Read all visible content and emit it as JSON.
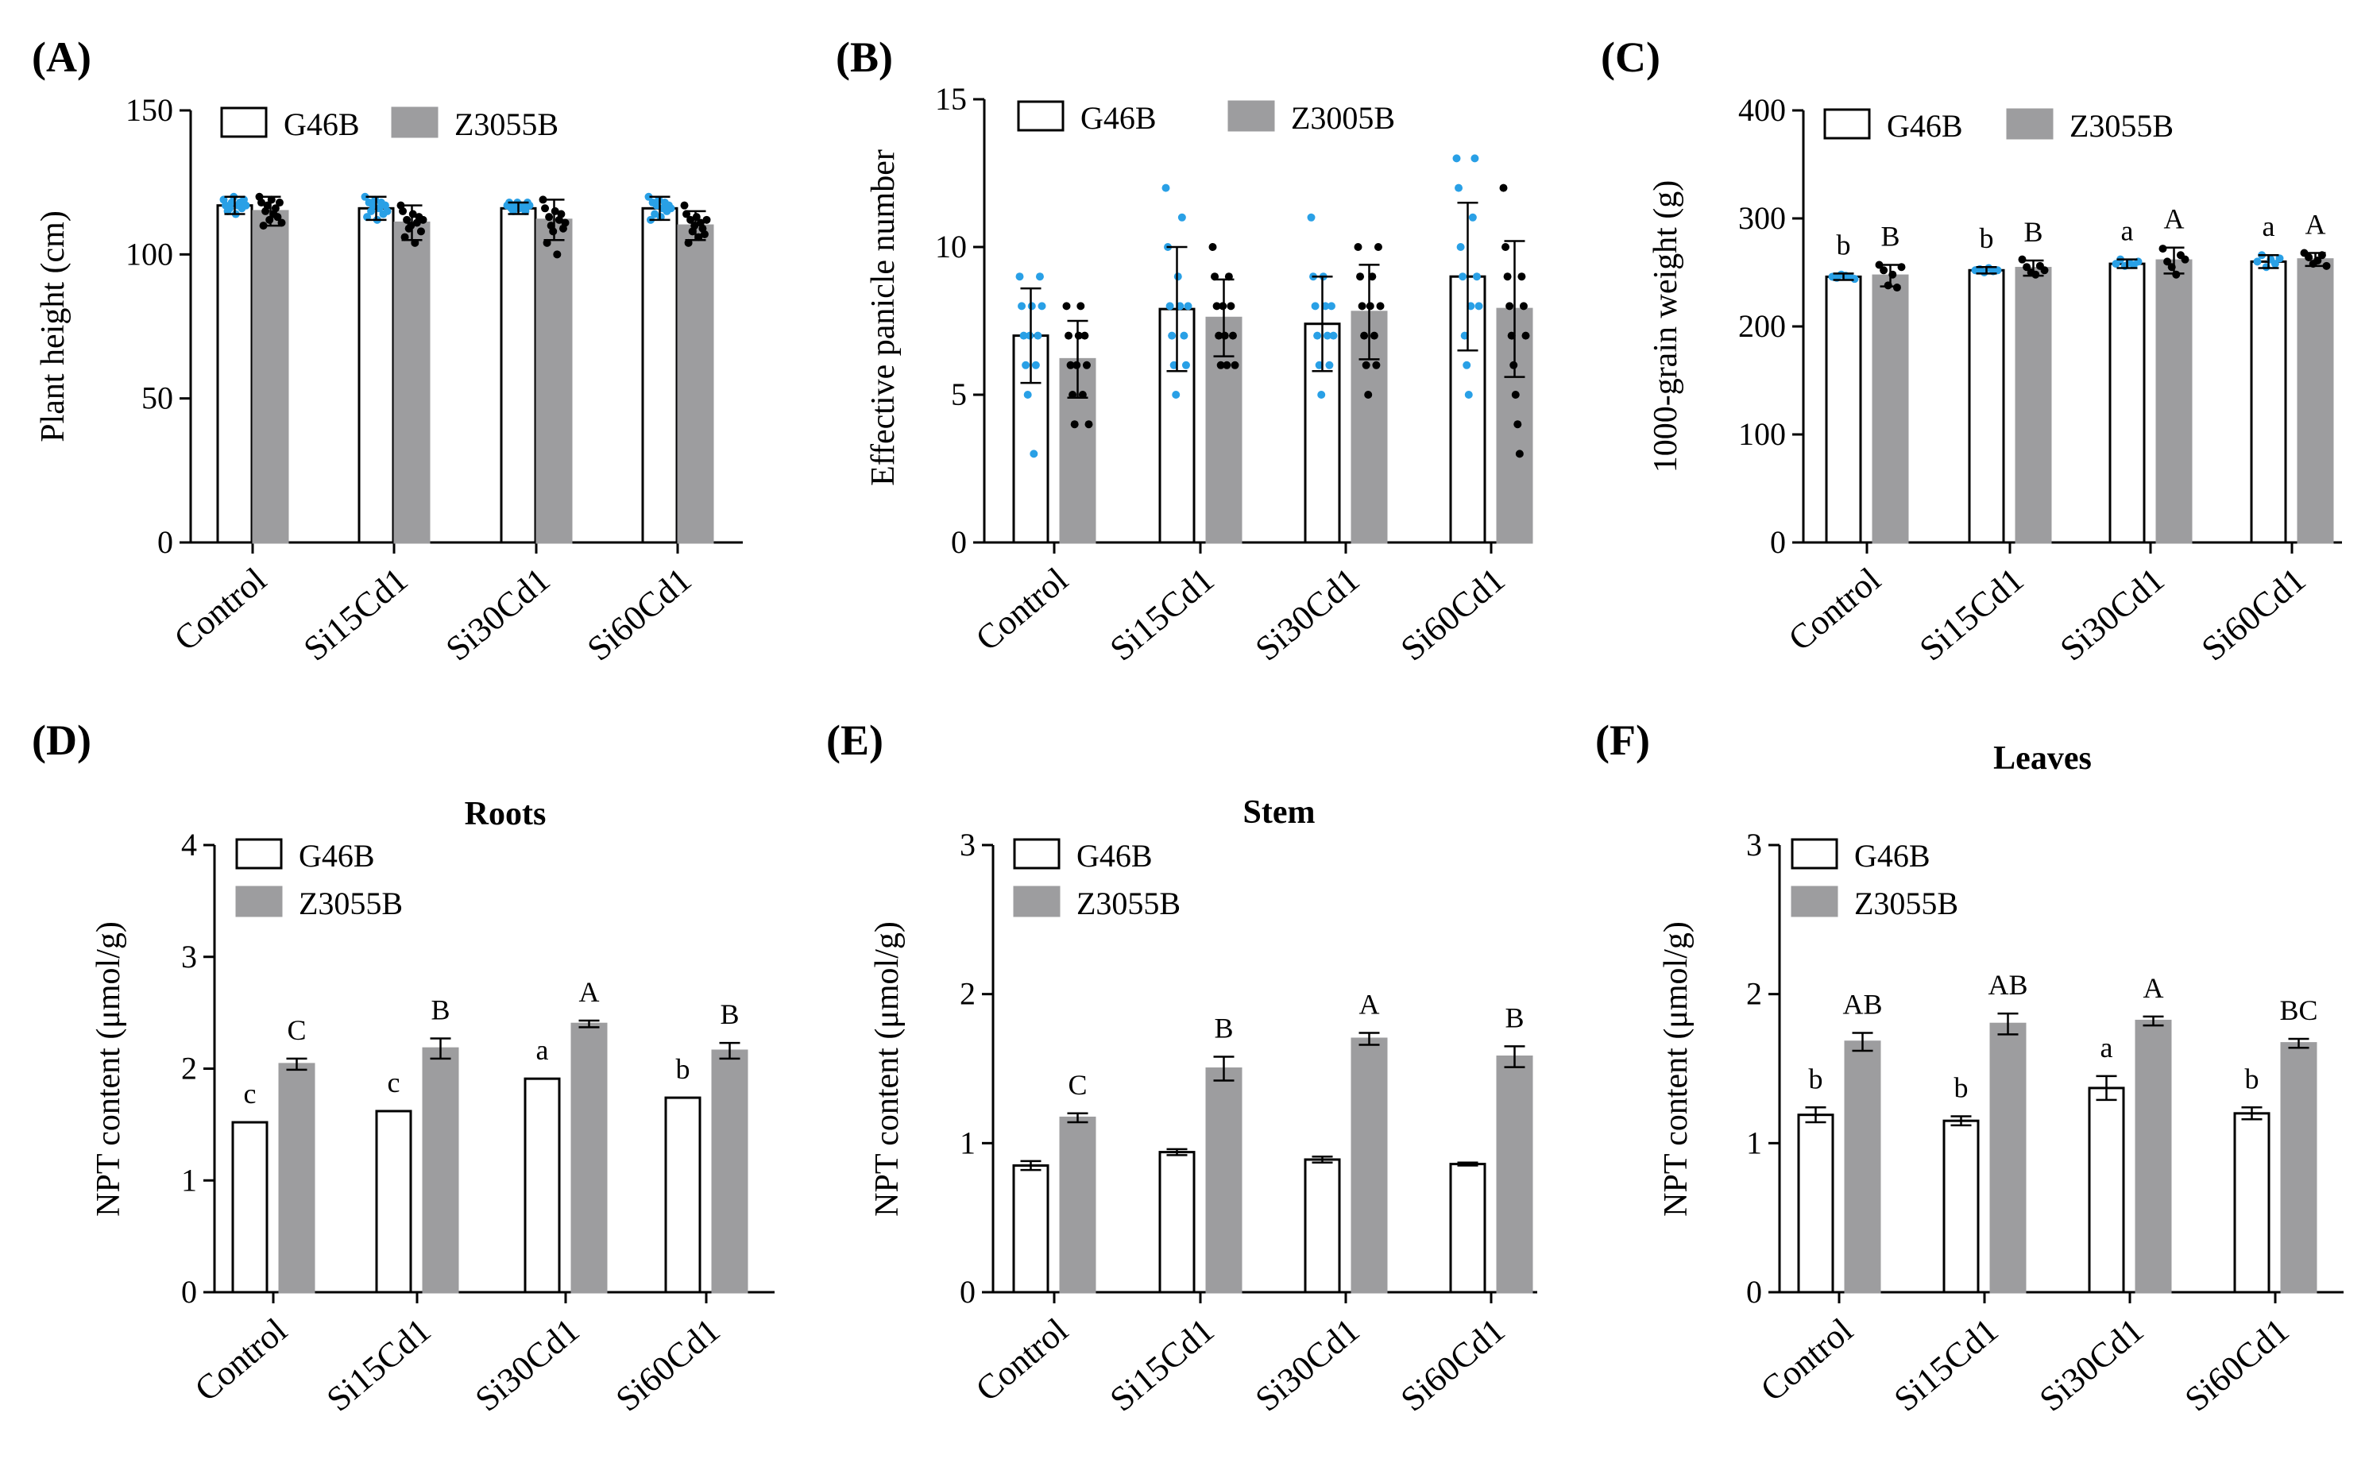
{
  "colors": {
    "open_bar": "#ffffff",
    "filled_bar": "#9d9d9f",
    "axis": "#000000",
    "dot_g46b": "#29a0e6",
    "dot_z3055b": "#000000"
  },
  "chart_data": [
    {
      "id": "A",
      "panel_label": "(A)",
      "title": "",
      "type": "bar",
      "ylabel": "Plant height (cm)",
      "ylim": [
        0,
        150
      ],
      "yticks": [
        0,
        50,
        100,
        150
      ],
      "categories": [
        "Control",
        "Si15Cd1",
        "Si30Cd1",
        "Si60Cd1"
      ],
      "legend": [
        "G46B",
        "Z3055B"
      ],
      "legend_layout": "row",
      "series": [
        {
          "name": "G46B",
          "values": [
            117,
            116,
            116,
            116
          ],
          "err": [
            3,
            4,
            2,
            4
          ],
          "sig": [],
          "points": [
            [
              119,
              117,
              115,
              116,
              118,
              120,
              114,
              117,
              118,
              116,
              119,
              117
            ],
            [
              120,
              113,
              118,
              115,
              117,
              119,
              112,
              116,
              118,
              114,
              117,
              115
            ],
            [
              117,
              118,
              116,
              115,
              117,
              118,
              116,
              117,
              116,
              115,
              118,
              117
            ],
            [
              120,
              112,
              118,
              114,
              117,
              119,
              113,
              116,
              118,
              115,
              117,
              116
            ]
          ]
        },
        {
          "name": "Z3055B",
          "values": [
            115,
            111,
            112,
            110
          ],
          "err": [
            5,
            6,
            7,
            5
          ],
          "sig": [],
          "points": [
            [
              120,
              118,
              110,
              115,
              117,
              112,
              119,
              114,
              116,
              113,
              118,
              111
            ],
            [
              117,
              115,
              106,
              112,
              109,
              110,
              114,
              104,
              111,
              113,
              108,
              112
            ],
            [
              119,
              116,
              104,
              113,
              110,
              108,
              115,
              100,
              112,
              114,
              109,
              111
            ],
            [
              117,
              114,
              104,
              112,
              108,
              110,
              113,
              106,
              111,
              109,
              107,
              112
            ]
          ]
        }
      ]
    },
    {
      "id": "B",
      "panel_label": "(B)",
      "title": "",
      "type": "bar",
      "ylabel": "Effective panicle number",
      "ylim": [
        0,
        15
      ],
      "yticks": [
        0,
        5,
        10,
        15
      ],
      "categories": [
        "Control",
        "Si15Cd1",
        "Si30Cd1",
        "Si60Cd1"
      ],
      "legend": [
        "G46B",
        "Z3005B"
      ],
      "legend_layout": "row",
      "series": [
        {
          "name": "G46B",
          "values": [
            7.0,
            7.9,
            7.4,
            9.0
          ],
          "err": [
            1.6,
            2.1,
            1.6,
            2.5
          ],
          "sig": [],
          "points": [
            [
              9,
              8,
              7,
              6,
              5,
              7,
              8,
              3,
              6,
              7,
              9,
              8
            ],
            [
              12,
              10,
              8,
              7,
              6,
              5,
              9,
              8,
              11,
              7,
              6,
              8
            ],
            [
              11,
              9,
              8,
              7,
              6,
              5,
              9,
              8,
              7,
              6,
              8,
              7
            ],
            [
              13,
              12,
              10,
              9,
              7,
              6,
              5,
              8,
              11,
              13,
              9,
              8
            ]
          ]
        },
        {
          "name": "Z3005B",
          "values": [
            6.2,
            7.6,
            7.8,
            7.9
          ],
          "err": [
            1.3,
            1.3,
            1.6,
            2.3
          ],
          "sig": [],
          "points": [
            [
              8,
              7,
              6,
              5,
              4,
              6,
              7,
              8,
              5,
              7,
              6,
              4
            ],
            [
              10,
              9,
              8,
              7,
              6,
              8,
              7,
              6,
              9,
              8,
              7,
              6
            ],
            [
              10,
              9,
              8,
              7,
              6,
              5,
              8,
              9,
              7,
              6,
              10,
              8
            ],
            [
              12,
              10,
              9,
              8,
              7,
              6,
              5,
              4,
              3,
              9,
              8,
              7
            ]
          ]
        }
      ]
    },
    {
      "id": "C",
      "panel_label": "(C)",
      "title": "",
      "type": "bar",
      "ylabel": "1000-grain weight (g)",
      "ylim": [
        0,
        400
      ],
      "yticks": [
        0,
        100,
        200,
        300,
        400
      ],
      "categories": [
        "Control",
        "Si15Cd1",
        "Si30Cd1",
        "Si60Cd1"
      ],
      "legend": [
        "G46B",
        "Z3055B"
      ],
      "legend_layout": "row",
      "series": [
        {
          "name": "G46B",
          "values": [
            246,
            252,
            258,
            260
          ],
          "err": [
            3,
            3,
            4,
            6
          ],
          "sig": [
            "b",
            "b",
            "a",
            "a"
          ],
          "points": [
            [
              246,
              245,
              248,
              247,
              246,
              244
            ],
            [
              252,
              253,
              250,
              254,
              251,
              252
            ],
            [
              258,
              262,
              256,
              259,
              257,
              260
            ],
            [
              260,
              266,
              255,
              262,
              258,
              263
            ]
          ]
        },
        {
          "name": "Z3055B",
          "values": [
            247,
            254,
            261,
            262
          ],
          "err": [
            10,
            7,
            12,
            6
          ],
          "sig": [
            "B",
            "B",
            "A",
            "A"
          ],
          "points": [
            [
              257,
              252,
              238,
              248,
              236,
              255
            ],
            [
              262,
              255,
              250,
              248,
              256,
              252
            ],
            [
              272,
              260,
              255,
              248,
              266,
              262
            ],
            [
              268,
              264,
              258,
              261,
              266,
              256
            ]
          ]
        }
      ]
    },
    {
      "id": "D",
      "panel_label": "(D)",
      "title": "Roots",
      "type": "bar",
      "ylabel": "NPT content (μmol/g)",
      "ylim": [
        0,
        4
      ],
      "yticks": [
        0,
        1,
        2,
        3,
        4
      ],
      "categories": [
        "Control",
        "Si15Cd1",
        "Si30Cd1",
        "Si60Cd1"
      ],
      "legend": [
        "G46B",
        "Z3055B"
      ],
      "legend_layout": "column",
      "series": [
        {
          "name": "G46B",
          "values": [
            1.52,
            1.62,
            1.91,
            1.74
          ],
          "err": [
            0,
            0,
            0,
            0
          ],
          "sig": [
            "c",
            "c",
            "a",
            "b"
          ],
          "points": []
        },
        {
          "name": "Z3055B",
          "values": [
            2.04,
            2.18,
            2.4,
            2.16
          ],
          "err": [
            0.05,
            0.09,
            0.03,
            0.07
          ],
          "sig": [
            "C",
            "B",
            "A",
            "B"
          ],
          "points": []
        }
      ]
    },
    {
      "id": "E",
      "panel_label": "(E)",
      "title": "Stem",
      "type": "bar",
      "ylabel": "NPT content (μmol/g)",
      "ylim": [
        0,
        3
      ],
      "yticks": [
        0,
        1,
        2,
        3
      ],
      "categories": [
        "Control",
        "Si15Cd1",
        "Si30Cd1",
        "Si60Cd1"
      ],
      "legend": [
        "G46B",
        "Z3055B"
      ],
      "legend_layout": "column",
      "series": [
        {
          "name": "G46B",
          "values": [
            0.85,
            0.94,
            0.89,
            0.86
          ],
          "err": [
            0.03,
            0.02,
            0.02,
            0.01
          ],
          "sig": [],
          "points": []
        },
        {
          "name": "Z3055B",
          "values": [
            1.17,
            1.5,
            1.7,
            1.58
          ],
          "err": [
            0.03,
            0.08,
            0.04,
            0.07
          ],
          "sig": [
            "C",
            "B",
            "A",
            "B"
          ],
          "points": []
        }
      ]
    },
    {
      "id": "F",
      "panel_label": "(F)",
      "title": "Leaves",
      "type": "bar",
      "ylabel": "NPT content (μmol/g)",
      "ylim": [
        0,
        3
      ],
      "yticks": [
        0,
        1,
        2,
        3
      ],
      "categories": [
        "Control",
        "Si15Cd1",
        "Si30Cd1",
        "Si60Cd1"
      ],
      "legend": [
        "G46B",
        "Z3055B"
      ],
      "legend_layout": "column",
      "series": [
        {
          "name": "G46B",
          "values": [
            1.19,
            1.15,
            1.37,
            1.2
          ],
          "err": [
            0.05,
            0.03,
            0.08,
            0.04
          ],
          "sig": [
            "b",
            "b",
            "a",
            "b"
          ],
          "points": []
        },
        {
          "name": "Z3055B",
          "values": [
            1.68,
            1.8,
            1.82,
            1.67
          ],
          "err": [
            0.06,
            0.07,
            0.03,
            0.03
          ],
          "sig": [
            "AB",
            "AB",
            "A",
            "BC"
          ],
          "points": []
        }
      ]
    }
  ]
}
